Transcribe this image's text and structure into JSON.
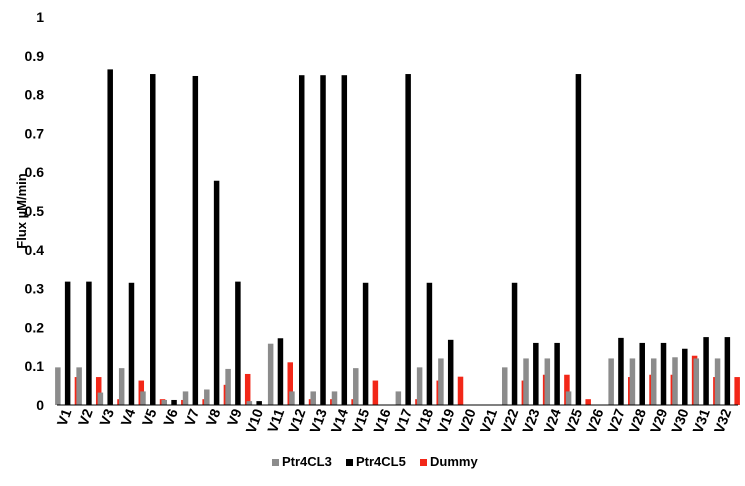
{
  "chart_data": {
    "type": "bar",
    "title": "",
    "xlabel": "",
    "ylabel": "Flux µM/min",
    "ylim": [
      0,
      1
    ],
    "yticks": [
      "0",
      "0.1",
      "0.2",
      "0.3",
      "0.4",
      "0.5",
      "0.6",
      "0.7",
      "0.8",
      "0.9",
      "1"
    ],
    "grid": false,
    "legend": "bottom",
    "categories": [
      "V1",
      "V2",
      "V3",
      "V4",
      "V5",
      "V6",
      "V7",
      "V8",
      "V9",
      "V10",
      "V11",
      "V12",
      "V13",
      "V14",
      "V15",
      "V16",
      "V17",
      "V18",
      "V19",
      "V20",
      "V21",
      "V22",
      "V23",
      "V24",
      "V25",
      "V26",
      "V27",
      "V28",
      "V29",
      "V30",
      "V31",
      "V32"
    ],
    "series": [
      {
        "name": "Ptr4CL3",
        "color": "#8c8c8c",
        "values": [
          0.097,
          0.097,
          0.032,
          0.095,
          0.035,
          0.013,
          0.035,
          0.04,
          0.093,
          0.01,
          0.158,
          0.035,
          0.035,
          0.035,
          0.095,
          0,
          0.035,
          0.097,
          0.12,
          0,
          0,
          0.097,
          0.12,
          0.12,
          0.035,
          0,
          0.12,
          0.12,
          0.12,
          0.123,
          0.12,
          0.12
        ]
      },
      {
        "name": "Ptr4CL5",
        "color": "#000000",
        "values": [
          0.318,
          0.318,
          0.865,
          0.315,
          0.853,
          0.013,
          0.848,
          0.578,
          0.318,
          0.01,
          0.172,
          0.85,
          0.85,
          0.85,
          0.315,
          0,
          0.853,
          0.315,
          0.168,
          0,
          0,
          0.315,
          0.16,
          0.16,
          0.853,
          0,
          0.173,
          0.16,
          0.16,
          0.145,
          0.175,
          0.175
        ]
      },
      {
        "name": "Dummy",
        "color": "#f22718",
        "values": [
          0.072,
          0.072,
          0.015,
          0.063,
          0.015,
          0.013,
          0.015,
          0.052,
          0.08,
          0,
          0.11,
          0.015,
          0.015,
          0.015,
          0.063,
          0,
          0.015,
          0.063,
          0.073,
          0,
          0,
          0.063,
          0.078,
          0.078,
          0.015,
          0,
          0.072,
          0.078,
          0.078,
          0.127,
          0.072,
          0.072
        ]
      }
    ]
  }
}
